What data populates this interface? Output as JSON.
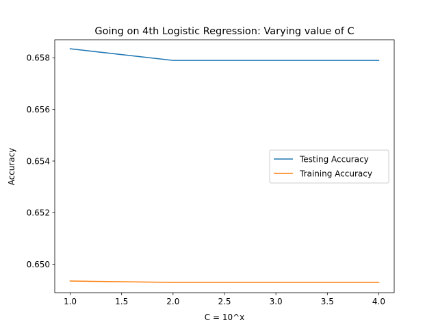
{
  "chart_data": {
    "type": "line",
    "title": "Going on 4th Logistic Regression: Varying value of C",
    "xlabel": "C = 10^x",
    "ylabel": "Accuracy",
    "x": [
      1.0,
      2.0,
      3.0,
      4.0
    ],
    "xlim": [
      0.85,
      4.15
    ],
    "ylim": [
      0.6489,
      0.6587
    ],
    "xticks": [
      1.0,
      1.5,
      2.0,
      2.5,
      3.0,
      3.5,
      4.0
    ],
    "xtick_labels": [
      "1.0",
      "1.5",
      "2.0",
      "2.5",
      "3.0",
      "3.5",
      "4.0"
    ],
    "yticks": [
      0.65,
      0.652,
      0.654,
      0.656,
      0.658
    ],
    "ytick_labels": [
      "0.650",
      "0.652",
      "0.654",
      "0.656",
      "0.658"
    ],
    "grid": false,
    "legend": "center-right",
    "series": [
      {
        "name": "Testing Accuracy",
        "color": "#1f77b4",
        "values": [
          0.65835,
          0.6579,
          0.6579,
          0.6579
        ]
      },
      {
        "name": "Training Accuracy",
        "color": "#ff7f0e",
        "values": [
          0.64935,
          0.6493,
          0.6493,
          0.6493
        ]
      }
    ]
  }
}
